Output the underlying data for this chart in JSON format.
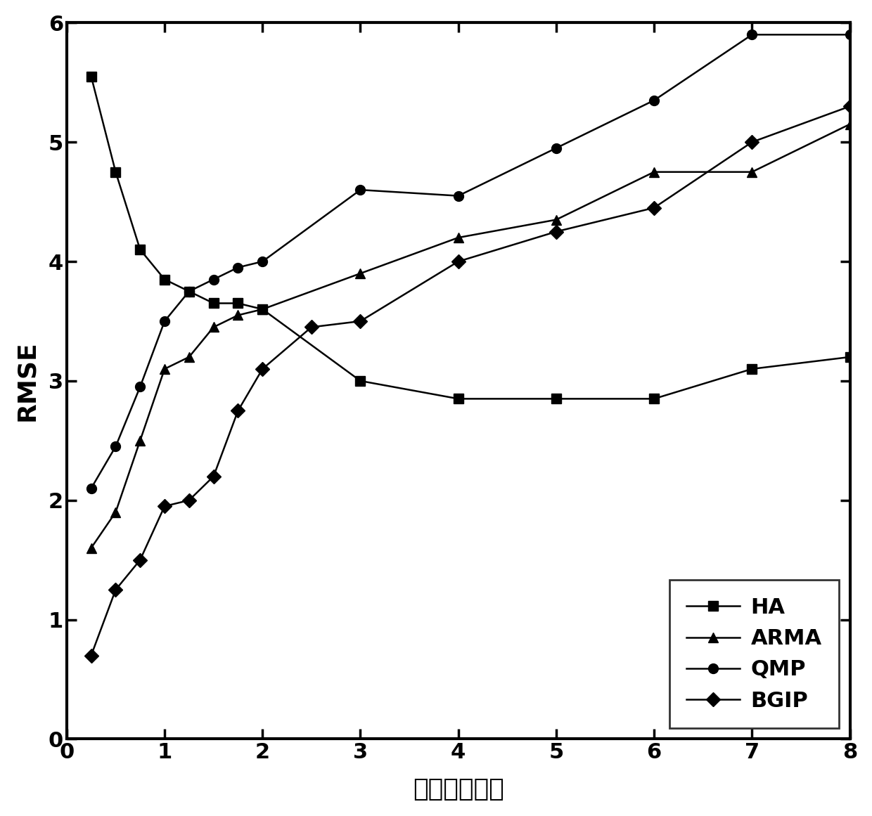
{
  "HA_x": [
    0.25,
    0.5,
    0.75,
    1.0,
    1.25,
    1.5,
    1.75,
    2.0,
    3.0,
    4.0,
    5.0,
    6.0,
    7.0,
    8.0
  ],
  "HA_y": [
    5.55,
    4.75,
    4.1,
    3.85,
    3.75,
    3.65,
    3.65,
    3.6,
    3.0,
    2.85,
    2.85,
    2.85,
    3.1,
    3.2
  ],
  "ARMA_x": [
    0.25,
    0.5,
    0.75,
    1.0,
    1.25,
    1.5,
    1.75,
    2.0,
    3.0,
    4.0,
    5.0,
    6.0,
    7.0,
    8.0
  ],
  "ARMA_y": [
    1.6,
    1.9,
    2.5,
    3.1,
    3.2,
    3.45,
    3.55,
    3.6,
    3.9,
    4.2,
    4.35,
    4.75,
    4.75,
    5.15
  ],
  "QMP_x": [
    0.25,
    0.5,
    0.75,
    1.0,
    1.25,
    1.5,
    1.75,
    2.0,
    3.0,
    4.0,
    5.0,
    6.0,
    7.0,
    8.0
  ],
  "QMP_y": [
    2.1,
    2.45,
    2.95,
    3.5,
    3.75,
    3.85,
    3.95,
    4.0,
    4.6,
    4.55,
    4.95,
    5.35,
    5.9,
    5.9
  ],
  "BGIP_x": [
    0.25,
    0.5,
    0.75,
    1.0,
    1.25,
    1.5,
    1.75,
    2.0,
    2.5,
    3.0,
    4.0,
    5.0,
    6.0,
    7.0,
    8.0
  ],
  "BGIP_y": [
    0.7,
    1.25,
    1.5,
    1.95,
    2.0,
    2.2,
    2.75,
    3.1,
    3.45,
    3.5,
    4.0,
    4.25,
    4.45,
    5.0,
    5.3
  ],
  "xlabel": "时间（小时）",
  "ylabel": "RMSE",
  "xlim": [
    0,
    8
  ],
  "ylim": [
    0,
    6
  ],
  "xticks": [
    0,
    1,
    2,
    3,
    4,
    5,
    6,
    7,
    8
  ],
  "yticks": [
    0,
    1,
    2,
    3,
    4,
    5,
    6
  ],
  "legend_labels": [
    "HA",
    "ARMA",
    "QMP",
    "BGIP"
  ],
  "line_color": "#000000",
  "marker_HA": "s",
  "marker_ARMA": "^",
  "marker_QMP": "o",
  "marker_BGIP": "D",
  "markersize": 10,
  "linewidth": 1.8,
  "spine_linewidth": 3.0,
  "tick_labelsize": 22,
  "axis_labelsize": 26,
  "legend_fontsize": 22
}
